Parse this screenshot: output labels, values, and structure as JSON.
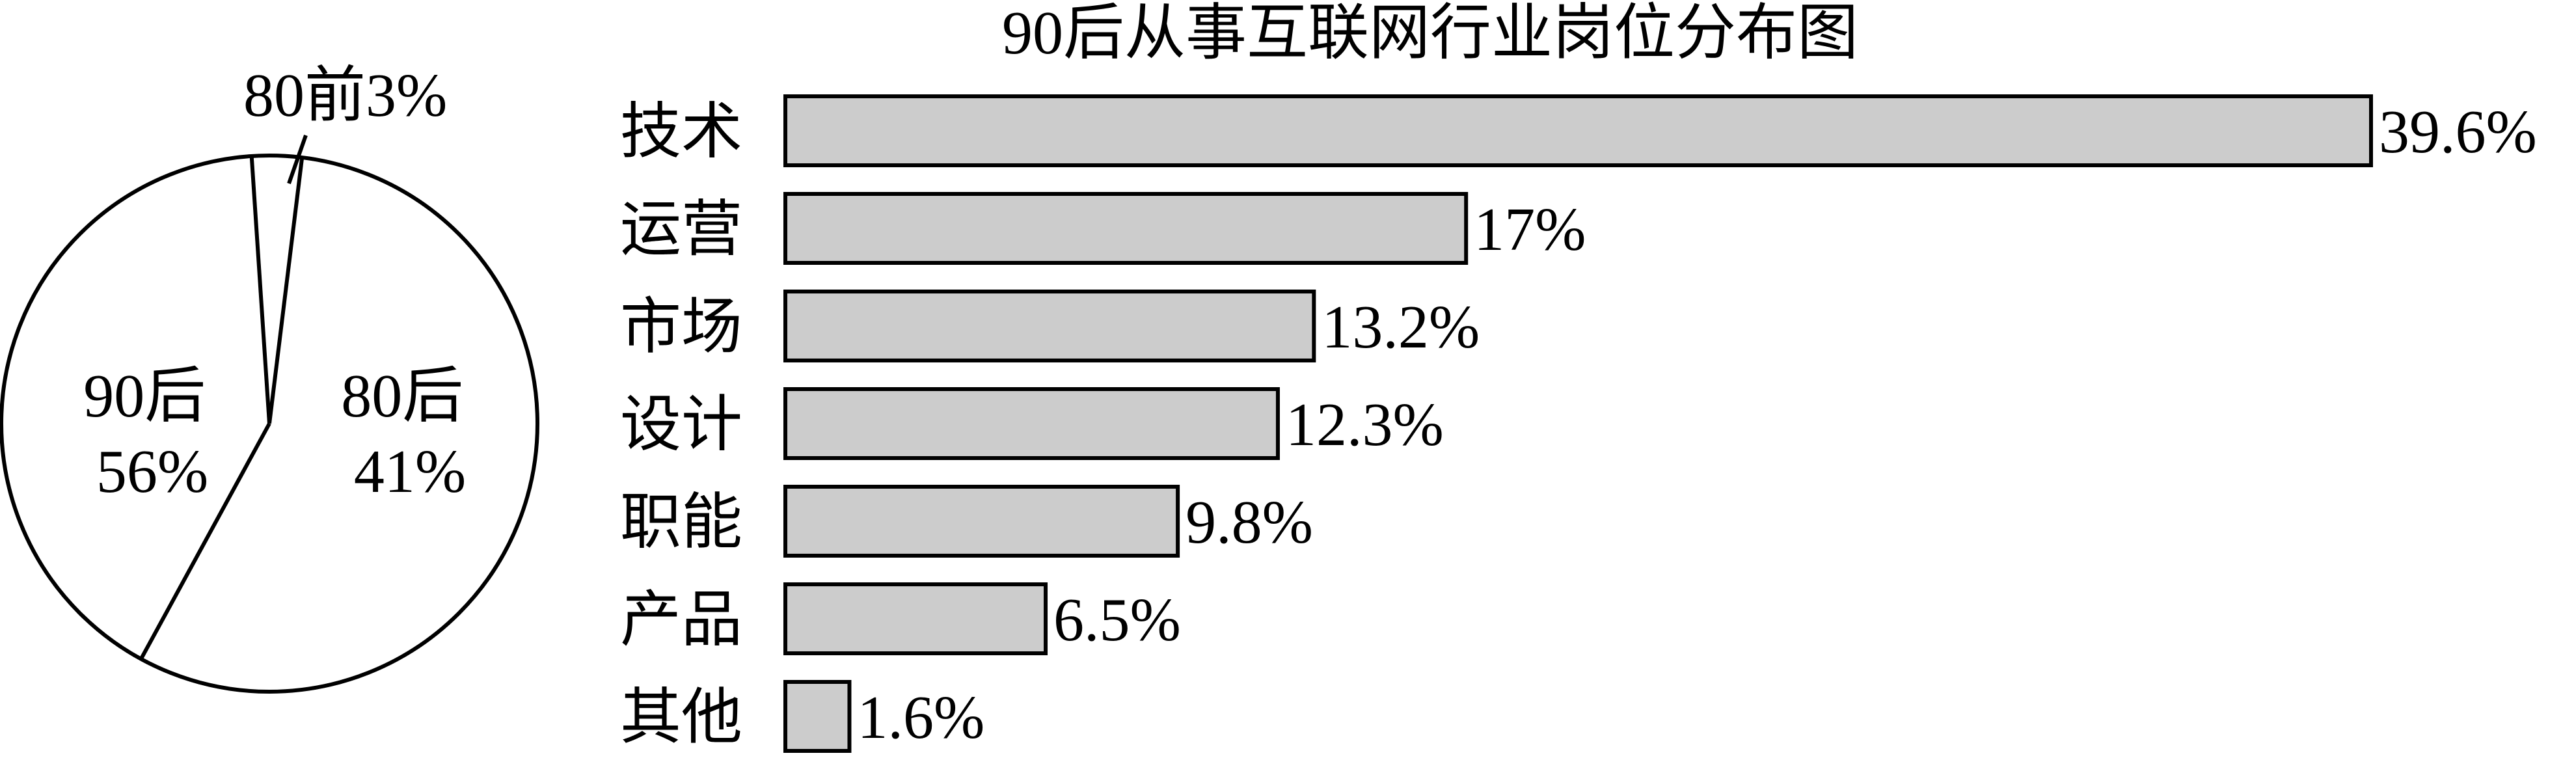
{
  "chart_data": [
    {
      "type": "pie",
      "title": "",
      "slices": [
        {
          "name": "90后",
          "value": 56,
          "label_lines": [
            "90后",
            "56%"
          ]
        },
        {
          "name": "80后",
          "value": 41,
          "label_lines": [
            "80后",
            "41%"
          ]
        },
        {
          "name": "80前",
          "value": 3,
          "label_lines": [
            "80前3%"
          ]
        }
      ],
      "colors": {
        "fill": "#ffffff",
        "stroke": "#000000"
      }
    },
    {
      "type": "bar",
      "orientation": "horizontal",
      "title": "90后从事互联网行业岗位分布图",
      "categories": [
        "技术",
        "运营",
        "市场",
        "设计",
        "职能",
        "产品",
        "其他"
      ],
      "values": [
        39.6,
        17,
        13.2,
        12.3,
        9.8,
        6.5,
        1.6
      ],
      "value_labels": [
        "39.6%",
        "17%",
        "13.2%",
        "12.3%",
        "9.8%",
        "6.5%",
        "1.6%"
      ],
      "colors": {
        "bar_fill": "#cccccc",
        "bar_stroke": "#000000"
      }
    }
  ]
}
